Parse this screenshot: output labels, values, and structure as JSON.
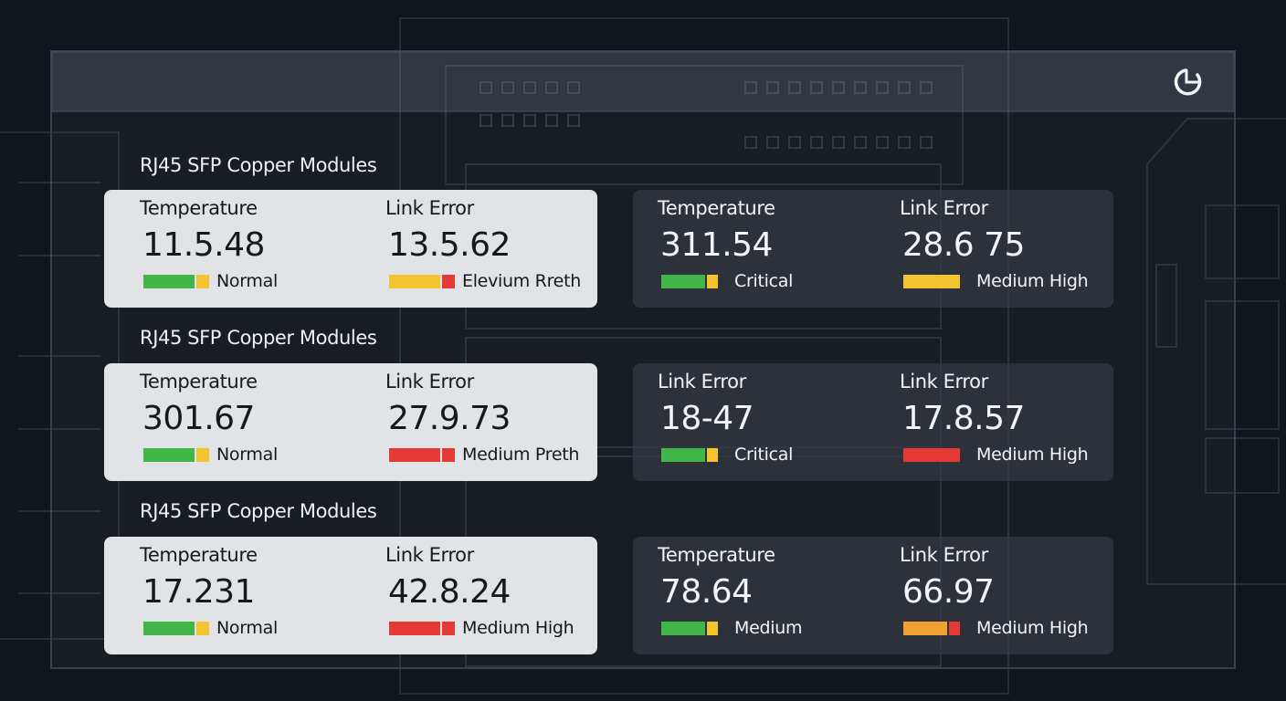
{
  "sections": [
    {
      "title": "RJ45 SFP Copper Modules",
      "cards": [
        {
          "metrics": [
            {
              "label": "Temperature",
              "value": "11.5.48",
              "status": "Normal",
              "bar": [
                "#43b649",
                "#f4c430"
              ]
            },
            {
              "label": "Link Error",
              "value": "13.5.62",
              "status": "Elevium Rreth",
              "bar": [
                "#f4c430",
                "#e53935"
              ]
            }
          ]
        },
        {
          "metrics": [
            {
              "label": "Temperature",
              "value": "311.54",
              "status": "Critical",
              "bar": [
                "#43b649",
                "#f4c430"
              ]
            },
            {
              "label": "Link Error",
              "value": "28.6 75",
              "status": "Medium High",
              "bar": [
                "#f4c430"
              ]
            }
          ]
        }
      ]
    },
    {
      "title": "RJ45 SFP Copper Modules",
      "cards": [
        {
          "metrics": [
            {
              "label": "Temperature",
              "value": "301.67",
              "status": "Normal",
              "bar": [
                "#43b649",
                "#f4c430"
              ]
            },
            {
              "label": "Link Error",
              "value": "27.9.73",
              "status": "Medium Preth",
              "bar": [
                "#e53935",
                "#e53935"
              ]
            }
          ]
        },
        {
          "metrics": [
            {
              "label": "Link Error",
              "value": "18-47",
              "status": "Critical",
              "bar": [
                "#43b649",
                "#f4c430"
              ]
            },
            {
              "label": "Link Error",
              "value": "17.8.57",
              "status": "Medium High",
              "bar": [
                "#e53935"
              ]
            }
          ]
        }
      ]
    },
    {
      "title": "RJ45 SFP Copper Modules",
      "cards": [
        {
          "metrics": [
            {
              "label": "Temperature",
              "value": "17.231",
              "status": "Normal",
              "bar": [
                "#43b649",
                "#f4c430"
              ]
            },
            {
              "label": "Link Error",
              "value": "42.8.24",
              "status": "Medium High",
              "bar": [
                "#e53935",
                "#e53935"
              ]
            }
          ]
        },
        {
          "metrics": [
            {
              "label": "Temperature",
              "value": "78.64",
              "status": "Medium",
              "bar": [
                "#43b649",
                "#f4c430"
              ]
            },
            {
              "label": "Link Error",
              "value": "66.97",
              "status": "Medium High",
              "bar": [
                "#f0a030",
                "#e53935"
              ]
            }
          ]
        }
      ]
    }
  ]
}
